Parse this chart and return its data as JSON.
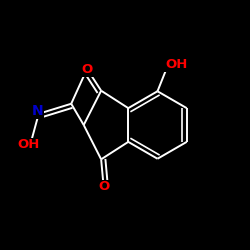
{
  "background": "#000000",
  "bond_color": "#ffffff",
  "atom_colors": {
    "O": "#ff0000",
    "N": "#0000cc",
    "C": "#ffffff",
    "H": "#ffffff"
  },
  "bond_width": 1.4,
  "figsize": [
    2.5,
    2.5
  ],
  "dpi": 100
}
